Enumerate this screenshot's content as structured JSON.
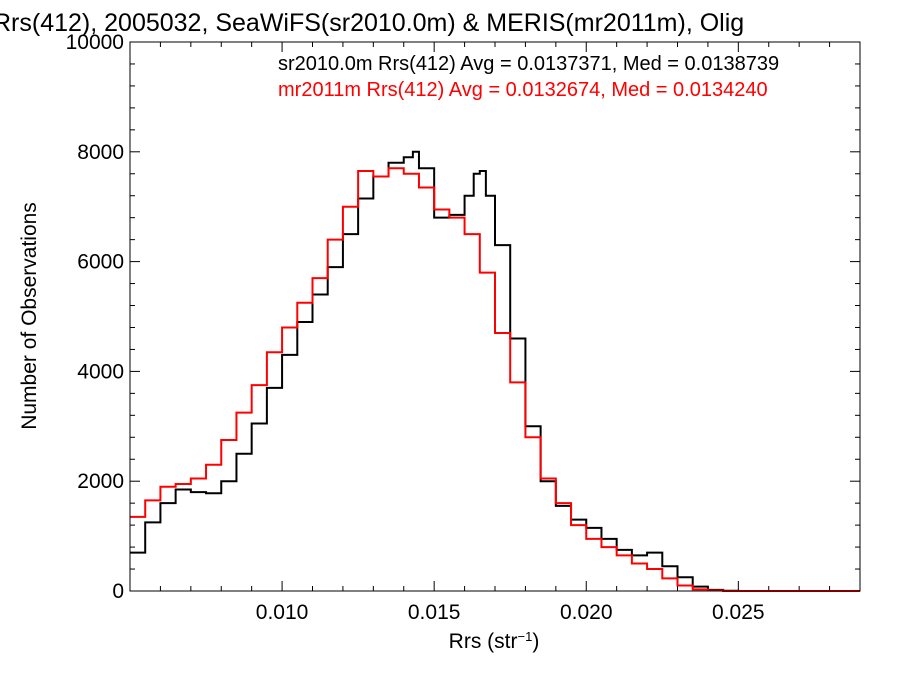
{
  "chart_data": {
    "type": "line",
    "title": "Rrs(412), 2005032, SeaWiFS(sr2010.0m) & MERIS(mr2011m), Olig",
    "xlabel_main": "Rrs (str",
    "xlabel_sup": "−1",
    "xlabel_tail": ")",
    "ylabel": "Number of Observations",
    "xlim": [
      0.005,
      0.029
    ],
    "ylim": [
      0,
      10000
    ],
    "xticks": [
      0.01,
      0.015,
      0.02,
      0.025
    ],
    "xtick_labels": [
      "0.010",
      "0.015",
      "0.020",
      "0.025"
    ],
    "yticks": [
      0,
      2000,
      4000,
      6000,
      8000,
      10000
    ],
    "ytick_labels": [
      "0",
      "2000",
      "4000",
      "6000",
      "8000",
      "10000"
    ],
    "grid": false,
    "legend_position": "top-right",
    "legend": [
      "sr2010.0m Rrs(412) Avg = 0.0137371, Med = 0.0138739",
      "mr2011m Rrs(412) Avg = 0.0132674, Med = 0.0134240"
    ],
    "series": [
      {
        "name": "sr2010.0m",
        "color": "#000000",
        "x": [
          0.005,
          0.0055,
          0.006,
          0.0065,
          0.007,
          0.0075,
          0.008,
          0.0085,
          0.009,
          0.0095,
          0.01,
          0.0105,
          0.011,
          0.0115,
          0.012,
          0.0125,
          0.013,
          0.0135,
          0.014,
          0.0143,
          0.0145,
          0.015,
          0.0155,
          0.016,
          0.0163,
          0.0165,
          0.0167,
          0.017,
          0.0175,
          0.018,
          0.0185,
          0.019,
          0.0195,
          0.02,
          0.0205,
          0.021,
          0.0215,
          0.022,
          0.0225,
          0.023,
          0.0235,
          0.024,
          0.0245,
          0.025,
          0.026,
          0.027,
          0.028,
          0.029
        ],
        "y": [
          700,
          1250,
          1600,
          1850,
          1800,
          1780,
          2000,
          2500,
          3050,
          3700,
          4300,
          4900,
          5400,
          5900,
          6500,
          7150,
          7550,
          7800,
          7900,
          8000,
          7700,
          6800,
          6850,
          7200,
          7600,
          7650,
          7200,
          6300,
          4600,
          3000,
          2000,
          1550,
          1300,
          1150,
          950,
          750,
          650,
          700,
          450,
          250,
          80,
          20,
          5,
          0,
          0,
          0,
          0,
          0
        ]
      },
      {
        "name": "mr2011m",
        "color": "#ff0000",
        "x": [
          0.005,
          0.0055,
          0.006,
          0.0065,
          0.007,
          0.0075,
          0.008,
          0.0085,
          0.009,
          0.0095,
          0.01,
          0.0105,
          0.011,
          0.0115,
          0.012,
          0.0125,
          0.013,
          0.0135,
          0.014,
          0.0145,
          0.015,
          0.0155,
          0.016,
          0.0165,
          0.017,
          0.0175,
          0.018,
          0.0185,
          0.019,
          0.0195,
          0.02,
          0.0205,
          0.021,
          0.0215,
          0.022,
          0.0225,
          0.023,
          0.0235,
          0.024,
          0.0245,
          0.025,
          0.026,
          0.027,
          0.028,
          0.029
        ],
        "y": [
          1350,
          1650,
          1900,
          1950,
          2050,
          2300,
          2750,
          3250,
          3750,
          4350,
          4800,
          5250,
          5700,
          6400,
          7000,
          7650,
          7550,
          7700,
          7600,
          7350,
          6950,
          6800,
          6500,
          5800,
          4700,
          3800,
          2800,
          2050,
          1600,
          1200,
          950,
          800,
          650,
          500,
          400,
          230,
          100,
          30,
          10,
          0,
          0,
          0,
          0,
          0,
          0
        ]
      }
    ]
  }
}
